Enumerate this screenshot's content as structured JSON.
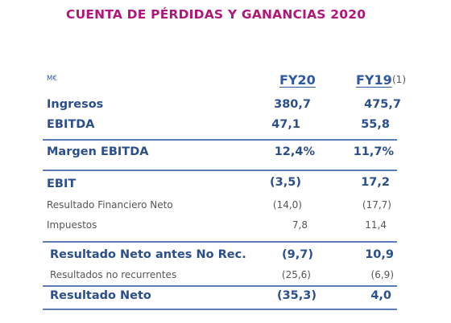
{
  "title": "CUENTA DE PÉRDIDAS Y GANANCIAS 2020",
  "unit": "M€",
  "columns": {
    "fy20": "FY20",
    "fy19": "FY19",
    "note": "(1)"
  },
  "rows": [
    {
      "label": "Ingresos",
      "fy20": "380,7",
      "fy19": "475,7"
    },
    {
      "label": "EBITDA",
      "fy20": "47,1",
      "fy19": "55,8"
    },
    {
      "label": "Margen EBITDA",
      "fy20": "12,4%",
      "fy19": "11,7%"
    },
    {
      "label": "EBIT",
      "fy20": "(3,5)",
      "fy19": "17,2"
    },
    {
      "label": "Resultado Financiero Neto",
      "fy20": "(14,0)",
      "fy19": "(17,7)"
    },
    {
      "label": "Impuestos",
      "fy20": "7,8",
      "fy19": "11,4"
    },
    {
      "label": "Resultado Neto antes No Rec.",
      "fy20": "(9,7)",
      "fy19": "10,9"
    },
    {
      "label": "Resultados no recurrentes",
      "fy20": "(25,6)",
      "fy19": "(6,9)"
    },
    {
      "label": "Resultado Neto",
      "fy20": "(35,3)",
      "fy19": "4,0"
    }
  ]
}
